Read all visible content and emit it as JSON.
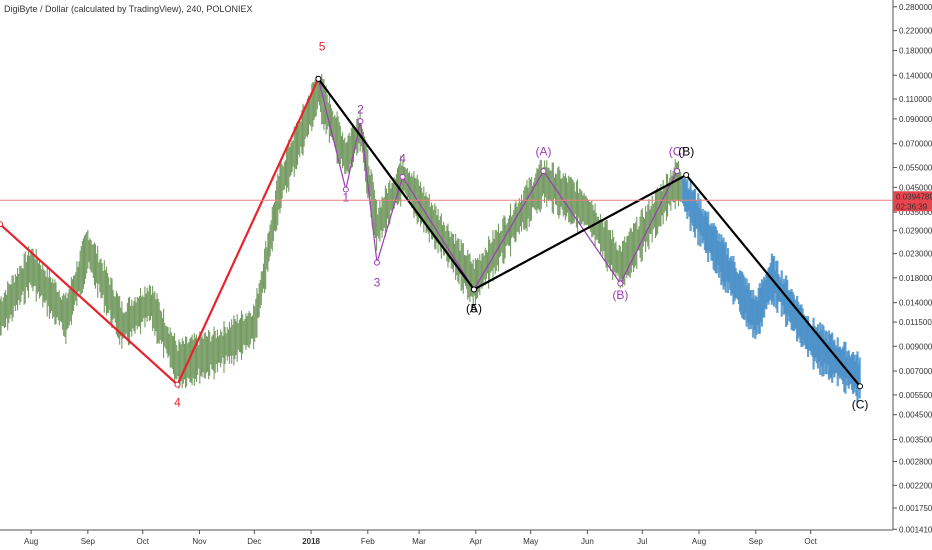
{
  "header": {
    "title": "DigiByte / Dollar (calculated by TradingView), 240, POLONIEX"
  },
  "colors": {
    "red_wave": "#e8232e",
    "purple_wave": "#9b3db5",
    "black_wave": "#000000",
    "candles_history": "#5d8a48",
    "candles_recent": "#4a90c8",
    "price_line": "#e88080",
    "price_badge": "#e8454f"
  },
  "price_badge": {
    "price": "0.03947897",
    "countdown": "02:36:39"
  },
  "chart_data": {
    "type": "line",
    "scale": "log",
    "ylim": [
      0.0014,
      0.3
    ],
    "y_ticks": [
      "0.28000000",
      "0.22000000",
      "0.18000000",
      "0.14000000",
      "0.11000000",
      "0.09000000",
      "0.07000000",
      "0.05500000",
      "0.04500000",
      "0.03500000",
      "0.02900000",
      "0.02300000",
      "0.01800000",
      "0.01400000",
      "0.01150000",
      "0.00900000",
      "0.00700000",
      "0.00550000",
      "0.00450000",
      "0.00350000",
      "0.00280000",
      "0.00220000",
      "0.00175000",
      "0.00141000"
    ],
    "x_ticks": [
      {
        "label": "Aug",
        "date": "2017-08-01"
      },
      {
        "label": "Sep",
        "date": "2017-09-01"
      },
      {
        "label": "Oct",
        "date": "2017-10-01"
      },
      {
        "label": "Nov",
        "date": "2017-11-01"
      },
      {
        "label": "Dec",
        "date": "2017-12-01"
      },
      {
        "label": "2018",
        "date": "2018-01-01",
        "bold": true
      },
      {
        "label": "Feb",
        "date": "2018-02-01"
      },
      {
        "label": "Mar",
        "date": "2018-03-01"
      },
      {
        "label": "Apr",
        "date": "2018-04-01"
      },
      {
        "label": "May",
        "date": "2018-05-01"
      },
      {
        "label": "Jun",
        "date": "2018-06-01"
      },
      {
        "label": "Jul",
        "date": "2018-07-01"
      },
      {
        "label": "Aug",
        "date": "2018-08-01"
      },
      {
        "label": "Sep",
        "date": "2018-09-01"
      },
      {
        "label": "Oct",
        "date": "2018-10-01"
      }
    ],
    "xlim": [
      "2017-07-15",
      "2018-11-15"
    ],
    "current_price": 0.03947897,
    "series": [
      {
        "style": "red",
        "points": [
          {
            "x": "2017-07-15",
            "y": 0.031
          },
          {
            "x": "2017-10-20",
            "y": 0.0061
          },
          {
            "x": "2018-01-05",
            "y": 0.135
          }
        ]
      },
      {
        "style": "purple",
        "points": [
          {
            "x": "2018-01-05",
            "y": 0.135
          },
          {
            "x": "2018-01-20",
            "y": 0.044
          },
          {
            "x": "2018-01-28",
            "y": 0.088
          },
          {
            "x": "2018-02-06",
            "y": 0.021
          },
          {
            "x": "2018-02-20",
            "y": 0.05
          },
          {
            "x": "2018-03-31",
            "y": 0.016
          },
          {
            "x": "2018-05-08",
            "y": 0.053
          },
          {
            "x": "2018-06-19",
            "y": 0.017
          },
          {
            "x": "2018-07-20",
            "y": 0.053
          }
        ]
      },
      {
        "style": "black",
        "points": [
          {
            "x": "2018-01-05",
            "y": 0.135
          },
          {
            "x": "2018-03-31",
            "y": 0.016
          },
          {
            "x": "2018-07-25",
            "y": 0.051
          },
          {
            "x": "2018-10-28",
            "y": 0.006
          }
        ]
      }
    ],
    "annotations": [
      {
        "text": "5",
        "x": "2018-01-07",
        "y": 0.18,
        "style": "red"
      },
      {
        "text": "4",
        "x": "2017-10-20",
        "y": 0.0049,
        "style": "red"
      },
      {
        "text": "1",
        "x": "2018-01-20",
        "y": 0.039,
        "style": "purple"
      },
      {
        "text": "2",
        "x": "2018-01-28",
        "y": 0.095,
        "style": "purple"
      },
      {
        "text": "3",
        "x": "2018-02-06",
        "y": 0.0165,
        "style": "purple"
      },
      {
        "text": "4",
        "x": "2018-02-20",
        "y": 0.058,
        "style": "purple"
      },
      {
        "text": "(A)",
        "x": "2018-05-08",
        "y": 0.062,
        "style": "purple"
      },
      {
        "text": "(B)",
        "x": "2018-06-19",
        "y": 0.0145,
        "style": "purple"
      },
      {
        "text": "(C)",
        "x": "2018-07-20",
        "y": 0.062,
        "style": "purple"
      },
      {
        "text": "(A)",
        "x": "2018-03-31",
        "y": 0.0127,
        "style": "black"
      },
      {
        "text": "5",
        "x": "2018-03-31",
        "y": 0.0127,
        "style": "black"
      },
      {
        "text": "(B)",
        "x": "2018-07-25",
        "y": 0.062,
        "style": "black"
      },
      {
        "text": "(C)",
        "x": "2018-10-28",
        "y": 0.0048,
        "style": "black"
      }
    ],
    "grid": false,
    "legend": "none"
  }
}
